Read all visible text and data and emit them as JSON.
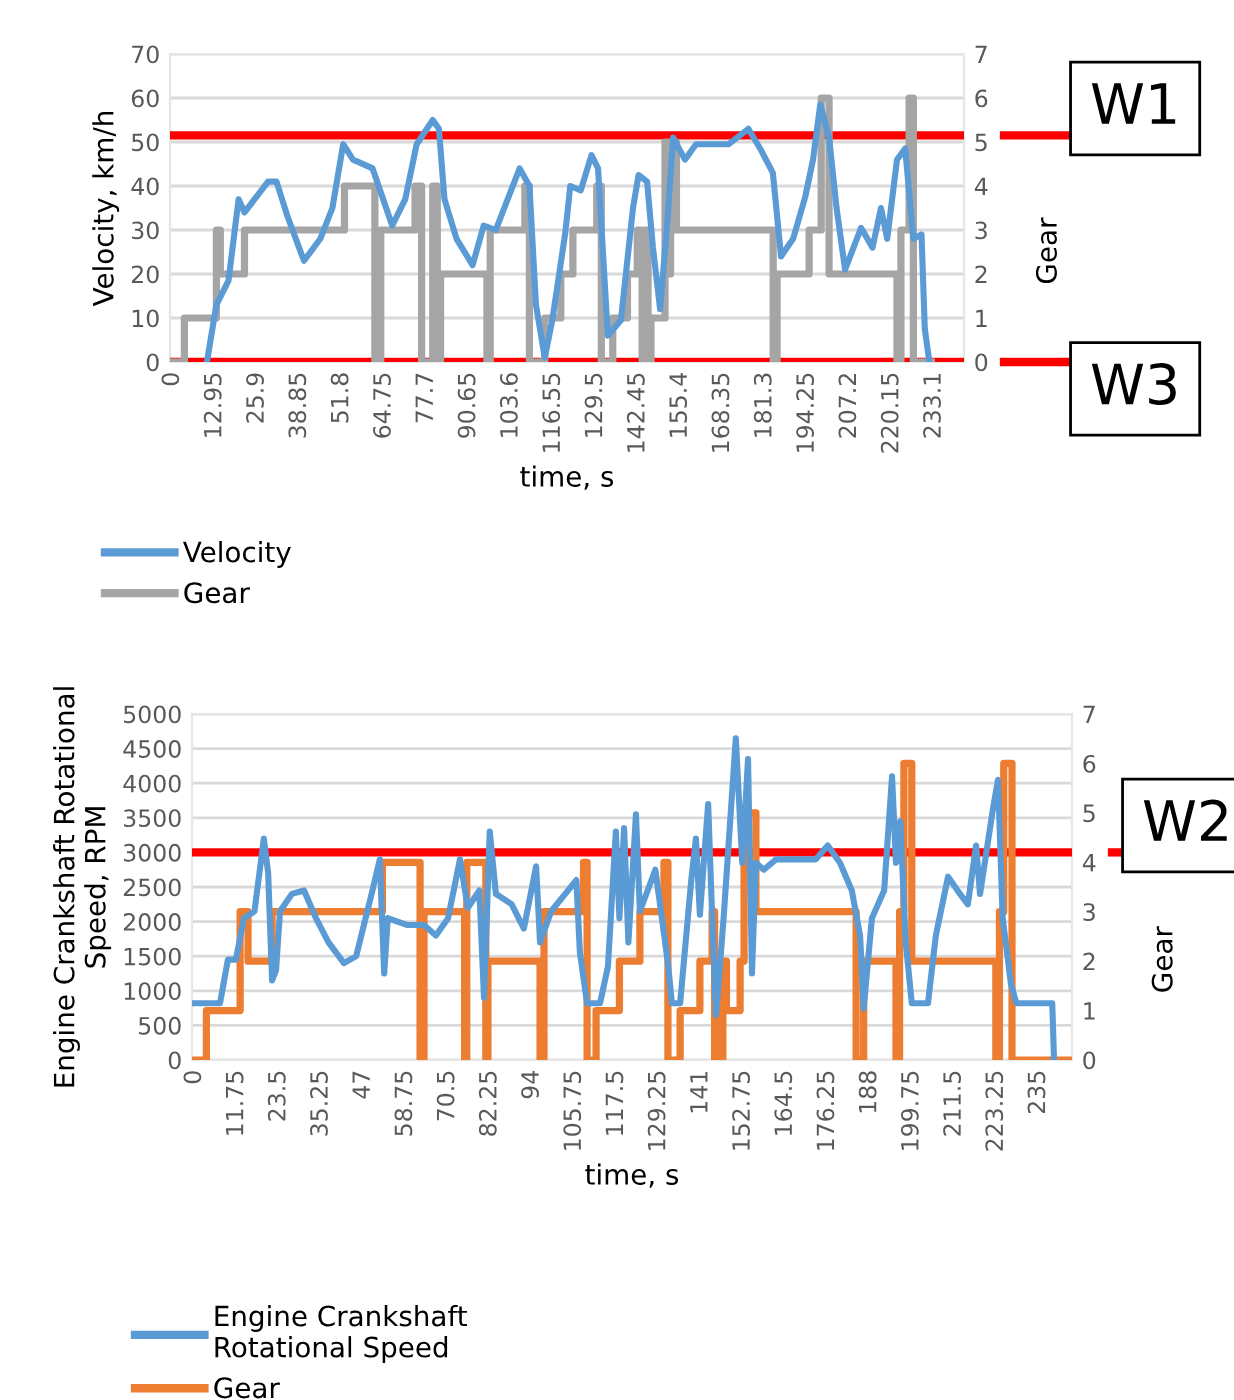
{
  "chart_data": [
    {
      "type": "line",
      "xlabel": "time, s",
      "ylabel": "Velocity, km/h",
      "y2label": "Gear",
      "xlim": [
        0,
        243
      ],
      "xticks": [
        0,
        12.95,
        25.9,
        38.85,
        51.8,
        64.75,
        77.7,
        90.65,
        103.6,
        116.55,
        129.5,
        142.45,
        155.4,
        168.35,
        181.3,
        194.25,
        207.2,
        220.15,
        233.1
      ],
      "ylim": [
        0,
        70
      ],
      "yticks": [
        0,
        10,
        20,
        30,
        40,
        50,
        60,
        70
      ],
      "y2lim": [
        0,
        7
      ],
      "y2ticks": [
        0,
        1,
        2,
        3,
        4,
        5,
        6,
        7
      ],
      "grid": "y",
      "legend": "bottom left",
      "ref_lines": [
        {
          "axis": "y",
          "value": 51.5,
          "label": "W1",
          "color": "#ff0000"
        },
        {
          "axis": "y",
          "value": 0,
          "label": "W3",
          "color": "#ff0000"
        }
      ],
      "series": [
        {
          "name": "Velocity",
          "color": "#5b9bd5",
          "type": "line",
          "x": [
            11.3,
            14.2,
            17.9,
            21,
            22.8,
            30,
            32.6,
            36,
            41,
            46,
            49.7,
            53,
            56,
            62,
            68,
            72,
            75.5,
            80.4,
            82.3,
            84,
            87.7,
            92.6,
            96,
            99.7,
            107,
            110,
            112,
            114.7,
            117,
            121,
            122.5,
            125.7,
            129,
            131,
            134,
            138,
            141.7,
            143.4,
            146,
            147.8,
            150,
            152,
            154,
            157.6,
            161,
            166,
            171,
            177,
            181,
            184.5,
            187,
            190.7,
            194.4,
            196.8,
            199,
            201.7,
            204,
            206.6,
            211.5,
            215,
            217.6,
            219.5,
            222.5,
            225,
            227.5,
            230,
            231,
            232.4
          ],
          "values": [
            0,
            13,
            18.5,
            37,
            34,
            41,
            41,
            33,
            23,
            28,
            35,
            49.5,
            46,
            44,
            31,
            37,
            49.5,
            55,
            53,
            37,
            28,
            22,
            31,
            30,
            44,
            40,
            13,
            1,
            9.5,
            29.5,
            40,
            39,
            47,
            44,
            6,
            9.5,
            35,
            42.5,
            41,
            26,
            12,
            30,
            51,
            46,
            49.5,
            49.5,
            49.5,
            53,
            48,
            43,
            24,
            28,
            37.5,
            46,
            58.5,
            51,
            35,
            21,
            30.5,
            26,
            35,
            28,
            46,
            48.5,
            28,
            29,
            7.5,
            0
          ]
        },
        {
          "name": "Gear",
          "color": "#a5a5a5",
          "type": "step",
          "axis": "y2",
          "x": [
            0,
            4.4,
            14.2,
            15.4,
            16.7,
            22.8,
            53.4,
            62.7,
            63.5,
            64.5,
            75,
            77,
            80.4,
            81.8,
            82.8,
            97,
            98,
            108.6,
            110,
            111,
            114.7,
            118,
            119.6,
            123.3,
            130.6,
            132,
            135.5,
            139,
            140,
            143,
            144.5,
            145.5,
            146.3,
            147.2,
            151.5,
            152.5,
            153.2,
            155,
            156.4,
            184.6,
            185.8,
            195.6,
            199.3,
            200.5,
            201.7,
            222.5,
            223.7,
            226.2,
            227.5,
            233
          ],
          "values": [
            0,
            1,
            3,
            2,
            2,
            3,
            4,
            0,
            0,
            3,
            4,
            0,
            4,
            0,
            2,
            0,
            3,
            4,
            0,
            0,
            1,
            1,
            2,
            3,
            4,
            0,
            1,
            1,
            2,
            3,
            0,
            3,
            0,
            1,
            5,
            2,
            5,
            3,
            3,
            0,
            2,
            3,
            6,
            6,
            2,
            0,
            3,
            6,
            0,
            0
          ]
        }
      ]
    },
    {
      "type": "line",
      "xlabel": "time, s",
      "ylabel": "Engine Crankshaft Rotational\nSpeed, RPM",
      "y2label": "Gear",
      "xlim": [
        0,
        245
      ],
      "xticks": [
        0,
        11.75,
        23.5,
        35.25,
        47,
        58.75,
        70.5,
        82.25,
        94,
        105.75,
        117.5,
        129.25,
        141,
        152.75,
        164.5,
        176.25,
        188,
        199.75,
        211.5,
        223.25,
        235
      ],
      "ylim": [
        0,
        5000
      ],
      "yticks": [
        0,
        500,
        1000,
        1500,
        2000,
        2500,
        3000,
        3500,
        4000,
        4500,
        5000
      ],
      "y2lim": [
        0,
        7
      ],
      "y2ticks": [
        0,
        1,
        2,
        3,
        4,
        5,
        6,
        7
      ],
      "grid": "y",
      "legend": "bottom left",
      "ref_lines": [
        {
          "axis": "y",
          "value": 3000,
          "label": "W2",
          "color": "#ff0000"
        }
      ],
      "series": [
        {
          "name": "Engine Crankshaft\nRotational Speed",
          "color": "#5b9bd5",
          "type": "line",
          "x": [
            0,
            7.8,
            10,
            12.2,
            14.5,
            17.4,
            20,
            21.2,
            22.3,
            23.4,
            24.5,
            27.8,
            31.2,
            34.5,
            38,
            42.3,
            45.7,
            50,
            52.3,
            53.5,
            54.5,
            60,
            64.6,
            67.9,
            71.3,
            74.6,
            76.8,
            80,
            81.3,
            82.9,
            84.6,
            89,
            92.4,
            95.8,
            96.9,
            100,
            107,
            108,
            110,
            113.6,
            115.8,
            118,
            119,
            120.3,
            121.5,
            123.6,
            124.7,
            129,
            132.5,
            133.6,
            135.9,
            139,
            140.3,
            141.4,
            143.7,
            144.8,
            145.9,
            148,
            149.7,
            151.4,
            153.2,
            154.8,
            155.9,
            157,
            159.2,
            162.6,
            169.3,
            173.7,
            177,
            180.4,
            183.7,
            186,
            187,
            189.3,
            192.7,
            194.9,
            196,
            197.2,
            198.7,
            200.4,
            204.9,
            207.1,
            210.5,
            213.8,
            216,
            218.3,
            219.4,
            222.9,
            224.4,
            225.7,
            228,
            229.5,
            239.5,
            240
          ],
          "values": [
            820,
            820,
            1450,
            1450,
            2050,
            2150,
            3200,
            2700,
            1150,
            1300,
            2150,
            2400,
            2450,
            2050,
            1700,
            1400,
            1500,
            2400,
            2900,
            1250,
            2050,
            1950,
            1950,
            1800,
            2050,
            2900,
            2200,
            2450,
            900,
            3300,
            2400,
            2250,
            1900,
            2800,
            1700,
            2150,
            2600,
            1550,
            820,
            820,
            1350,
            3300,
            2050,
            3350,
            1700,
            3550,
            2150,
            2750,
            1400,
            820,
            820,
            2600,
            3200,
            2100,
            3700,
            2100,
            650,
            2050,
            3350,
            4650,
            2850,
            4350,
            1250,
            2850,
            2750,
            2900,
            2900,
            2900,
            3100,
            2850,
            2450,
            1800,
            750,
            2050,
            2450,
            4100,
            2850,
            3450,
            1700,
            820,
            820,
            1800,
            2650,
            2400,
            2250,
            3100,
            2400,
            3600,
            4050,
            2050,
            1100,
            820,
            820,
            0
          ]
        },
        {
          "name": "Gear",
          "color": "#ed7d31",
          "type": "step",
          "axis": "y2",
          "x": [
            0,
            4,
            13.4,
            15.6,
            22.3,
            53,
            63.5,
            64.6,
            75.9,
            76.5,
            81,
            81.8,
            82.4,
            96.9,
            98,
            109,
            110,
            112.5,
            119,
            124.7,
            131.4,
            132.5,
            135.9,
            141.4,
            144.8,
            145.5,
            146.2,
            147,
            147.8,
            148.8,
            152.6,
            153.7,
            157,
            184.9,
            187,
            196,
            197,
            198.2,
            200.4,
            223.8,
            224.8,
            226,
            228.3,
            245
          ],
          "values": [
            0,
            1,
            3,
            2,
            3,
            4,
            0,
            3,
            0,
            4,
            4,
            0,
            2,
            0,
            3,
            4,
            0,
            1,
            2,
            3,
            4,
            0,
            1,
            2,
            3,
            0,
            2,
            0,
            2,
            1,
            2,
            5,
            3,
            0,
            2,
            0,
            3,
            6,
            2,
            0,
            3,
            6,
            0,
            0
          ]
        }
      ]
    }
  ]
}
